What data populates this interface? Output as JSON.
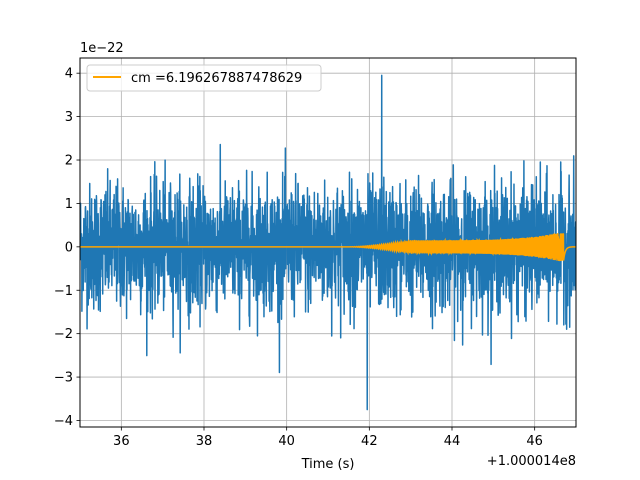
{
  "chart_data": {
    "type": "line",
    "title": "",
    "xlabel": "Time (s)",
    "ylabel": "",
    "x_offset_label": "+1.000014e8",
    "y_scale_label": "1e−22",
    "xlim": [
      35,
      47
    ],
    "ylim": [
      -4.15,
      4.35
    ],
    "x_ticks": [
      36,
      38,
      40,
      42,
      44,
      46
    ],
    "x_tick_labels": [
      "36",
      "38",
      "40",
      "42",
      "44",
      "46"
    ],
    "y_ticks": [
      -4,
      -3,
      -2,
      -1,
      0,
      1,
      2,
      3,
      4
    ],
    "y_tick_labels": [
      "−4",
      "−3",
      "−2",
      "−1",
      "0",
      "1",
      "2",
      "3",
      "4"
    ],
    "grid": true,
    "legend_position": "top-left",
    "series": [
      {
        "name": "",
        "color": "#1f77b4",
        "kind": "noise",
        "x_range": [
          35,
          47
        ],
        "typical_amplitude": [
          -1.9,
          2.0
        ],
        "peak_max": 3.95,
        "peak_min": -3.75
      },
      {
        "name": "cm =6.196267887478629",
        "color": "#ffa500",
        "kind": "chirp",
        "x_range": [
          35,
          47
        ],
        "amplitude_start": 0.0,
        "amplitude_mid": 0.15,
        "amplitude_max": 0.35,
        "merger_time": 46.7
      }
    ]
  }
}
